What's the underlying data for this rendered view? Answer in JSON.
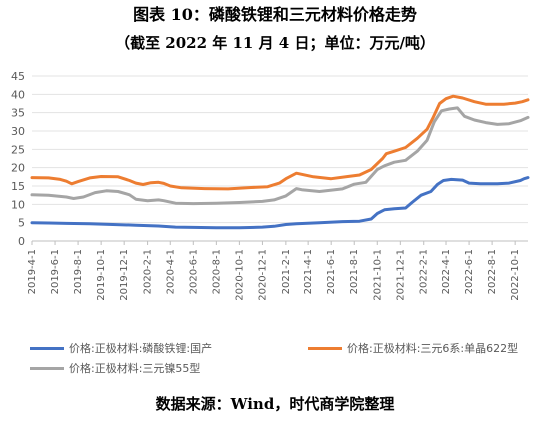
{
  "header": {
    "title": "图表 10：磷酸铁锂和三元材料价格走势",
    "subtitle": "（截至 2022 年 11 月 4 日；单位：万元/吨）"
  },
  "footer": {
    "source": "数据来源：Wind，时代商学院整理"
  },
  "chart_data": {
    "type": "line",
    "title": "图表 10：磷酸铁锂和三元材料价格走势",
    "subtitle": "（截至 2022 年 11 月 4 日；单位：万元/吨）",
    "xlabel": "",
    "ylabel": "",
    "ylim": [
      0,
      45
    ],
    "yticks": [
      0,
      5,
      10,
      15,
      20,
      25,
      30,
      35,
      40,
      45
    ],
    "xticks": [
      "2019-4-1",
      "2019-6-1",
      "2019-8-1",
      "2019-10-1",
      "2019-12-1",
      "2020-2-1",
      "2020-4-1",
      "2020-6-1",
      "2020-8-1",
      "2020-10-1",
      "2020-12-1",
      "2021-2-1",
      "2021-4-1",
      "2021-6-1",
      "2021-8-1",
      "2021-10-1",
      "2021-12-1",
      "2022-2-1",
      "2022-4-1",
      "2022-6-1",
      "2022-8-1",
      "2022-10-1"
    ],
    "x_start": "2019-04-01",
    "x_end": "2022-11-04",
    "grid": "horizontal",
    "legend_position": "bottom",
    "series": [
      {
        "name": "价格:正极材料:磷酸铁锂:国产",
        "color": "#4472C4",
        "points": [
          [
            "2019-04-01",
            5.0
          ],
          [
            "2019-05-15",
            4.9
          ],
          [
            "2019-07-01",
            4.8
          ],
          [
            "2019-09-01",
            4.7
          ],
          [
            "2019-11-01",
            4.5
          ],
          [
            "2020-01-01",
            4.3
          ],
          [
            "2020-03-01",
            4.1
          ],
          [
            "2020-04-15",
            3.8
          ],
          [
            "2020-06-01",
            3.7
          ],
          [
            "2020-08-01",
            3.6
          ],
          [
            "2020-10-01",
            3.6
          ],
          [
            "2020-12-01",
            3.8
          ],
          [
            "2021-01-01",
            4.0
          ],
          [
            "2021-02-01",
            4.5
          ],
          [
            "2021-03-01",
            4.7
          ],
          [
            "2021-05-01",
            5.0
          ],
          [
            "2021-07-01",
            5.3
          ],
          [
            "2021-08-15",
            5.4
          ],
          [
            "2021-09-15",
            6.0
          ],
          [
            "2021-10-01",
            7.5
          ],
          [
            "2021-10-20",
            8.5
          ],
          [
            "2021-11-15",
            8.8
          ],
          [
            "2021-12-15",
            9.0
          ],
          [
            "2022-01-01",
            10.5
          ],
          [
            "2022-01-25",
            12.5
          ],
          [
            "2022-02-20",
            13.5
          ],
          [
            "2022-03-10",
            15.5
          ],
          [
            "2022-03-25",
            16.5
          ],
          [
            "2022-04-15",
            16.8
          ],
          [
            "2022-05-15",
            16.6
          ],
          [
            "2022-06-01",
            15.8
          ],
          [
            "2022-07-01",
            15.6
          ],
          [
            "2022-08-15",
            15.6
          ],
          [
            "2022-09-15",
            15.8
          ],
          [
            "2022-10-15",
            16.5
          ],
          [
            "2022-10-25",
            17.0
          ],
          [
            "2022-11-04",
            17.3
          ]
        ]
      },
      {
        "name": "价格:正极材料:三元6系:单晶622型",
        "color": "#ED7D31",
        "points": [
          [
            "2019-04-01",
            17.3
          ],
          [
            "2019-05-15",
            17.2
          ],
          [
            "2019-06-15",
            16.8
          ],
          [
            "2019-07-01",
            16.3
          ],
          [
            "2019-07-15",
            15.6
          ],
          [
            "2019-08-01",
            16.2
          ],
          [
            "2019-09-01",
            17.2
          ],
          [
            "2019-10-01",
            17.6
          ],
          [
            "2019-11-15",
            17.5
          ],
          [
            "2019-12-15",
            16.5
          ],
          [
            "2020-01-01",
            15.8
          ],
          [
            "2020-01-20",
            15.4
          ],
          [
            "2020-02-10",
            15.9
          ],
          [
            "2020-03-01",
            16.0
          ],
          [
            "2020-03-15",
            15.7
          ],
          [
            "2020-04-01",
            15.0
          ],
          [
            "2020-05-01",
            14.5
          ],
          [
            "2020-07-01",
            14.3
          ],
          [
            "2020-09-01",
            14.2
          ],
          [
            "2020-11-01",
            14.6
          ],
          [
            "2020-12-15",
            14.8
          ],
          [
            "2021-01-15",
            15.8
          ],
          [
            "2021-02-01",
            17.0
          ],
          [
            "2021-03-01",
            18.5
          ],
          [
            "2021-03-15",
            18.2
          ],
          [
            "2021-04-15",
            17.5
          ],
          [
            "2021-06-01",
            17.0
          ],
          [
            "2021-07-15",
            17.6
          ],
          [
            "2021-08-15",
            18.0
          ],
          [
            "2021-09-15",
            19.5
          ],
          [
            "2021-10-15",
            22.5
          ],
          [
            "2021-10-25",
            23.8
          ],
          [
            "2021-11-15",
            24.5
          ],
          [
            "2021-12-15",
            25.5
          ],
          [
            "2022-01-15",
            28.0
          ],
          [
            "2022-02-10",
            30.5
          ],
          [
            "2022-02-25",
            33.5
          ],
          [
            "2022-03-15",
            37.5
          ],
          [
            "2022-04-01",
            38.8
          ],
          [
            "2022-04-20",
            39.5
          ],
          [
            "2022-05-15",
            39.0
          ],
          [
            "2022-06-15",
            38.0
          ],
          [
            "2022-07-15",
            37.3
          ],
          [
            "2022-09-01",
            37.3
          ],
          [
            "2022-10-01",
            37.6
          ],
          [
            "2022-10-20",
            38.0
          ],
          [
            "2022-11-04",
            38.5
          ]
        ]
      },
      {
        "name": "价格:正极材料:三元镍55型",
        "color": "#A5A5A5",
        "points": [
          [
            "2019-04-01",
            12.6
          ],
          [
            "2019-05-15",
            12.5
          ],
          [
            "2019-07-01",
            12.0
          ],
          [
            "2019-07-20",
            11.6
          ],
          [
            "2019-08-15",
            12.0
          ],
          [
            "2019-09-15",
            13.2
          ],
          [
            "2019-10-15",
            13.7
          ],
          [
            "2019-11-15",
            13.5
          ],
          [
            "2019-12-15",
            12.6
          ],
          [
            "2020-01-01",
            11.4
          ],
          [
            "2020-02-01",
            11.0
          ],
          [
            "2020-03-01",
            11.2
          ],
          [
            "2020-03-15",
            11.0
          ],
          [
            "2020-04-15",
            10.3
          ],
          [
            "2020-06-01",
            10.2
          ],
          [
            "2020-08-01",
            10.3
          ],
          [
            "2020-10-01",
            10.5
          ],
          [
            "2020-12-01",
            10.8
          ],
          [
            "2021-01-01",
            11.2
          ],
          [
            "2021-02-01",
            12.3
          ],
          [
            "2021-03-01",
            14.3
          ],
          [
            "2021-03-15",
            14.0
          ],
          [
            "2021-05-01",
            13.5
          ],
          [
            "2021-07-01",
            14.2
          ],
          [
            "2021-08-01",
            15.5
          ],
          [
            "2021-09-01",
            16.0
          ],
          [
            "2021-10-01",
            19.5
          ],
          [
            "2021-10-20",
            20.5
          ],
          [
            "2021-11-15",
            21.5
          ],
          [
            "2021-12-15",
            22.0
          ],
          [
            "2022-01-15",
            24.5
          ],
          [
            "2022-02-10",
            27.5
          ],
          [
            "2022-03-01",
            32.5
          ],
          [
            "2022-03-20",
            35.5
          ],
          [
            "2022-04-10",
            36.0
          ],
          [
            "2022-05-01",
            36.3
          ],
          [
            "2022-05-20",
            34.0
          ],
          [
            "2022-06-15",
            33.0
          ],
          [
            "2022-07-15",
            32.3
          ],
          [
            "2022-08-15",
            31.8
          ],
          [
            "2022-09-15",
            32.0
          ],
          [
            "2022-10-15",
            32.8
          ],
          [
            "2022-11-04",
            33.7
          ]
        ]
      }
    ]
  }
}
